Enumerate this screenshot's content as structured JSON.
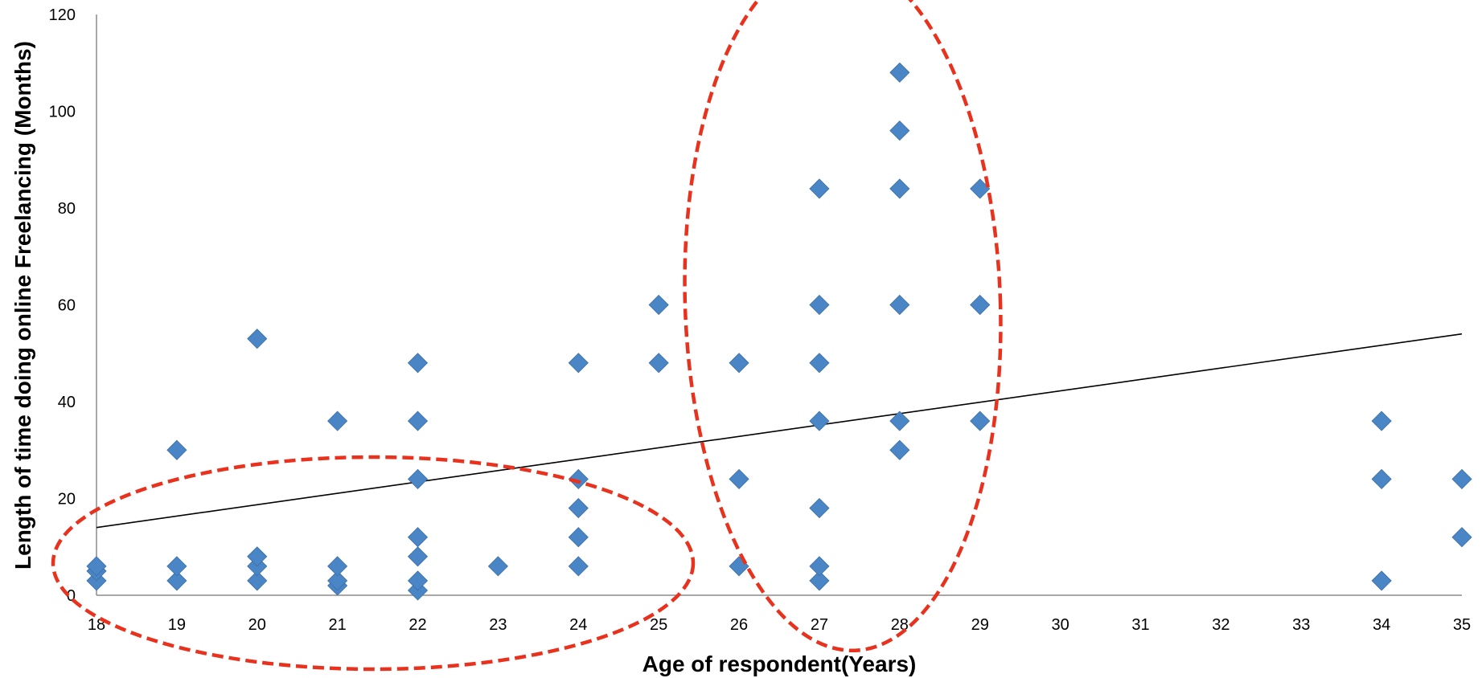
{
  "chart_data": {
    "type": "scatter",
    "title": "",
    "xlabel": "Age of respondent(Years)",
    "ylabel": "Length of time doing online Freelancing (Months)",
    "categories": [
      "18",
      "19",
      "20",
      "21",
      "22",
      "23",
      "24",
      "25",
      "26",
      "27",
      "28",
      "29",
      "30",
      "31",
      "32",
      "33",
      "34",
      "35"
    ],
    "yticks": [
      "0",
      "20",
      "40",
      "60",
      "80",
      "100",
      "120"
    ],
    "ylim": [
      0,
      120
    ],
    "grid": false,
    "legend": "none",
    "marker": "diamond",
    "marker_color": "#4a86c6",
    "trendline_color": "#000000",
    "annotation_color": "#e8321e",
    "series": [
      {
        "points": [
          {
            "x": "18",
            "y": 3
          },
          {
            "x": "18",
            "y": 5
          },
          {
            "x": "18",
            "y": 6
          },
          {
            "x": "19",
            "y": 3
          },
          {
            "x": "19",
            "y": 6
          },
          {
            "x": "19",
            "y": 30
          },
          {
            "x": "20",
            "y": 3
          },
          {
            "x": "20",
            "y": 6
          },
          {
            "x": "20",
            "y": 8
          },
          {
            "x": "20",
            "y": 53
          },
          {
            "x": "21",
            "y": 2
          },
          {
            "x": "21",
            "y": 3
          },
          {
            "x": "21",
            "y": 6
          },
          {
            "x": "21",
            "y": 36
          },
          {
            "x": "22",
            "y": 1
          },
          {
            "x": "22",
            "y": 3
          },
          {
            "x": "22",
            "y": 8
          },
          {
            "x": "22",
            "y": 12
          },
          {
            "x": "22",
            "y": 24
          },
          {
            "x": "22",
            "y": 36
          },
          {
            "x": "22",
            "y": 48
          },
          {
            "x": "23",
            "y": 6
          },
          {
            "x": "24",
            "y": 6
          },
          {
            "x": "24",
            "y": 12
          },
          {
            "x": "24",
            "y": 18
          },
          {
            "x": "24",
            "y": 24
          },
          {
            "x": "24",
            "y": 48
          },
          {
            "x": "25",
            "y": 48
          },
          {
            "x": "25",
            "y": 60
          },
          {
            "x": "26",
            "y": 6
          },
          {
            "x": "26",
            "y": 24
          },
          {
            "x": "26",
            "y": 48
          },
          {
            "x": "27",
            "y": 3
          },
          {
            "x": "27",
            "y": 6
          },
          {
            "x": "27",
            "y": 18
          },
          {
            "x": "27",
            "y": 36
          },
          {
            "x": "27",
            "y": 48
          },
          {
            "x": "27",
            "y": 60
          },
          {
            "x": "27",
            "y": 84
          },
          {
            "x": "28",
            "y": 30
          },
          {
            "x": "28",
            "y": 36
          },
          {
            "x": "28",
            "y": 60
          },
          {
            "x": "28",
            "y": 84
          },
          {
            "x": "28",
            "y": 96
          },
          {
            "x": "28",
            "y": 108
          },
          {
            "x": "29",
            "y": 36
          },
          {
            "x": "29",
            "y": 60
          },
          {
            "x": "29",
            "y": 84
          },
          {
            "x": "34",
            "y": 3
          },
          {
            "x": "34",
            "y": 24
          },
          {
            "x": "34",
            "y": 36
          },
          {
            "x": "35",
            "y": 12
          },
          {
            "x": "35",
            "y": 24
          }
        ]
      }
    ],
    "trendline": {
      "start": {
        "x": "18",
        "y": 14
      },
      "end": {
        "x": "35",
        "y": 54
      }
    }
  }
}
